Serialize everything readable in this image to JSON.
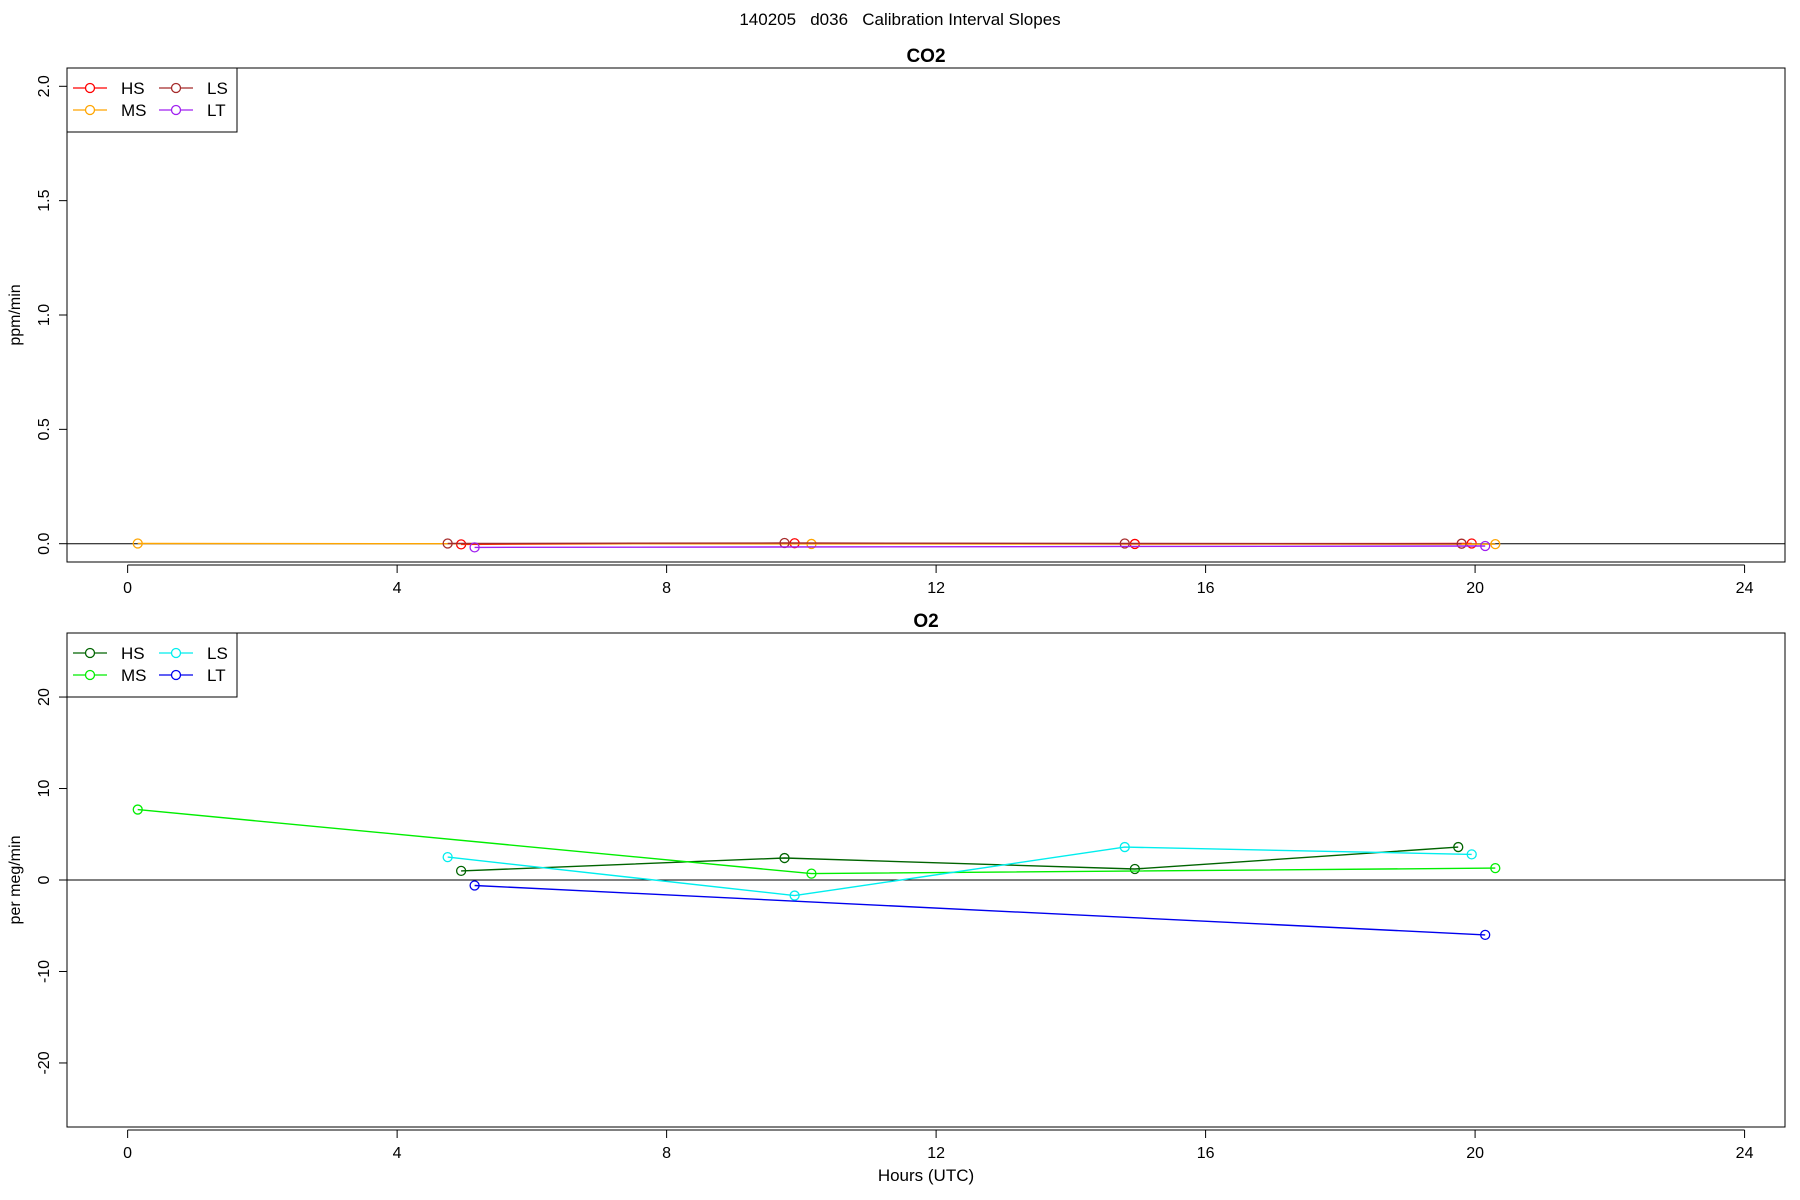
{
  "figure": {
    "title": "140205   d036   Calibration Interval Slopes"
  },
  "chart_data": [
    {
      "type": "line",
      "title": "CO2",
      "xlabel": "",
      "ylabel": "ppm/min",
      "xlim": [
        -0.9,
        24.6
      ],
      "ylim": [
        -0.08,
        2.08
      ],
      "x_ticks": [
        0,
        4,
        8,
        12,
        16,
        20,
        24
      ],
      "y_ticks": [
        0.0,
        0.5,
        1.0,
        1.5,
        2.0
      ],
      "y_tick_labels": [
        "0.0",
        "0.5",
        "1.0",
        "1.5",
        "2.0"
      ],
      "hline": 0,
      "legend": "top-left",
      "series": [
        {
          "name": "HS",
          "color": "#ff0000",
          "x": [
            4.95,
            9.9,
            14.95,
            19.95
          ],
          "y": [
            -0.003,
            0.002,
            -0.001,
            0.001
          ]
        },
        {
          "name": "MS",
          "color": "#ffa500",
          "x": [
            0.15,
            10.15,
            20.3
          ],
          "y": [
            0.001,
            -0.001,
            -0.002
          ]
        },
        {
          "name": "LS",
          "color": "#a52a2a",
          "x": [
            4.75,
            9.75,
            14.8,
            19.8
          ],
          "y": [
            0.001,
            0.003,
            0.001,
            0.0
          ]
        },
        {
          "name": "LT",
          "color": "#a020f0",
          "x": [
            5.15,
            20.15
          ],
          "y": [
            -0.016,
            -0.01
          ]
        }
      ]
    },
    {
      "type": "line",
      "title": "O2",
      "xlabel": "Hours (UTC)",
      "ylabel": "per meg/min",
      "xlim": [
        -0.9,
        24.6
      ],
      "ylim": [
        -27,
        27
      ],
      "x_ticks": [
        0,
        4,
        8,
        12,
        16,
        20,
        24
      ],
      "y_ticks": [
        -20,
        -10,
        0,
        10,
        20
      ],
      "y_tick_labels": [
        "-20",
        "-10",
        "0",
        "10",
        "20"
      ],
      "hline": 0,
      "legend": "top-left",
      "series": [
        {
          "name": "HS",
          "color": "#006400",
          "x": [
            4.95,
            9.75,
            14.95,
            19.75
          ],
          "y": [
            1.0,
            2.4,
            1.2,
            3.6
          ]
        },
        {
          "name": "MS",
          "color": "#00ee00",
          "x": [
            0.15,
            10.15,
            20.3
          ],
          "y": [
            7.7,
            0.7,
            1.3
          ]
        },
        {
          "name": "LS",
          "color": "#00eeee",
          "x": [
            4.75,
            9.9,
            14.8,
            19.95
          ],
          "y": [
            2.5,
            -1.7,
            3.6,
            2.8
          ]
        },
        {
          "name": "LT",
          "color": "#0000ee",
          "x": [
            5.15,
            20.15
          ],
          "y": [
            -0.6,
            -6.0
          ]
        }
      ]
    }
  ]
}
